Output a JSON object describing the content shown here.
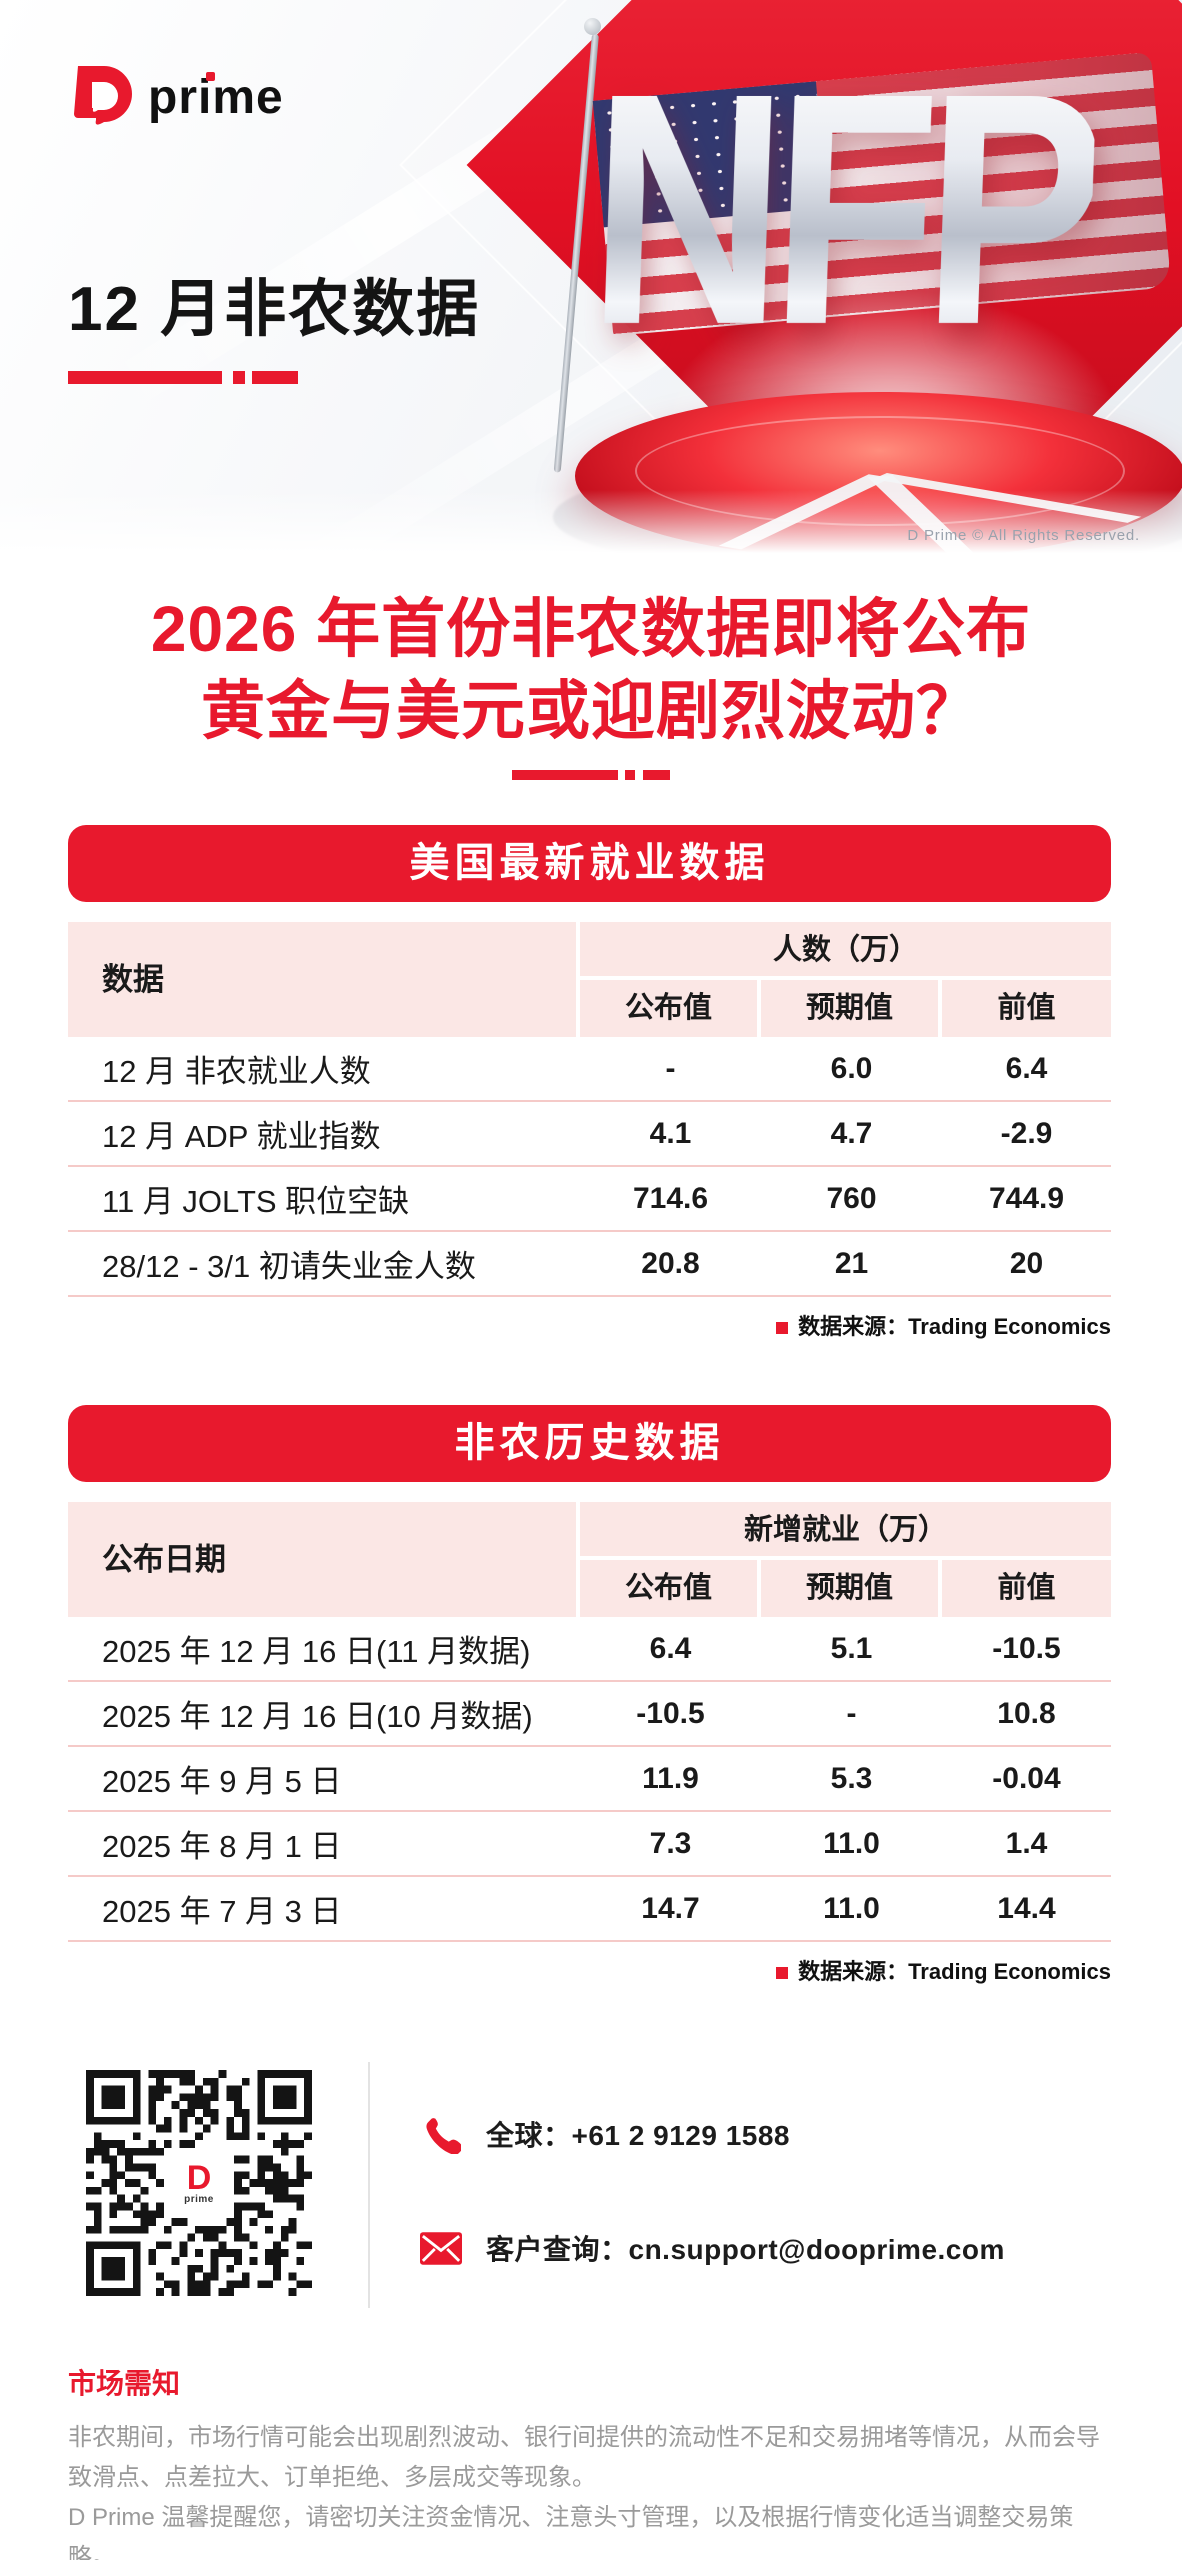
{
  "brand": {
    "accent_red": "#E8192D",
    "cell_pink": "#FBE7E5",
    "separator_pink": "#F5CAC8",
    "text_dark": "#1A1A1A",
    "muted_gray": "#9A9A9A"
  },
  "hero": {
    "logo": {
      "pre": "pr",
      "i": "i",
      "post": "me"
    },
    "title": "12 月非农数据",
    "nfp_text": "NFP",
    "copyright": "D Prime © All Rights Reserved.",
    "icons": {
      "flag": "us-flag-icon",
      "podium": "red-pie-podium"
    }
  },
  "headline": {
    "line1": "2026 年首份非农数据即将公布",
    "line2": "黄金与美元或迎剧烈波动？"
  },
  "tables": [
    {
      "banner": "美国最新就业数据",
      "row_header": "数据",
      "col_group_label": "人数（万）",
      "columns": [
        "公布值",
        "预期值",
        "前值"
      ],
      "rows": [
        {
          "label": "12 月 非农就业人数",
          "values": [
            "-",
            "6.0",
            "6.4"
          ]
        },
        {
          "label": "12 月 ADP 就业指数",
          "values": [
            "4.1",
            "4.7",
            "-2.9"
          ]
        },
        {
          "label": "11 月 JOLTS 职位空缺",
          "values": [
            "714.6",
            "760",
            "744.9"
          ]
        },
        {
          "label": "28/12 - 3/1 初请失业金人数",
          "values": [
            "20.8",
            "21",
            "20"
          ]
        }
      ],
      "source": "数据来源：Trading Economics"
    },
    {
      "banner": "非农历史数据",
      "row_header": "公布日期",
      "col_group_label": "新增就业（万）",
      "columns": [
        "公布值",
        "预期值",
        "前值"
      ],
      "rows": [
        {
          "label": "2025 年 12 月 16 日(11 月数据)",
          "values": [
            "6.4",
            "5.1",
            "-10.5"
          ]
        },
        {
          "label": "2025 年 12 月 16 日(10 月数据)",
          "values": [
            "-10.5",
            "-",
            "10.8"
          ]
        },
        {
          "label": "2025 年 9 月 5 日",
          "values": [
            "11.9",
            "5.3",
            "-0.04"
          ]
        },
        {
          "label": "2025 年 8 月 1 日",
          "values": [
            "7.3",
            "11.0",
            "1.4"
          ]
        },
        {
          "label": "2025 年 7 月 3 日",
          "values": [
            "14.7",
            "11.0",
            "14.4"
          ]
        }
      ],
      "source": "数据来源：Trading Economics"
    }
  ],
  "contact": {
    "phone_label": "全球：+61 2 9129 1588",
    "email_label": "客户查询：cn.support@dooprime.com",
    "qr_logo_letter": "D",
    "qr_logo_sub": "prime"
  },
  "footer": {
    "heading": "市场需知",
    "line1": "非农期间，市场行情可能会出现剧烈波动、银行间提供的流动性不足和交易拥堵等情况，从而会导致滑点、点差拉大、订单拒绝、多层成交等现象。",
    "line2": "D Prime 温馨提醒您，请密切关注资金情况、注意头寸管理，以及根据行情变化适当调整交易策略。"
  }
}
